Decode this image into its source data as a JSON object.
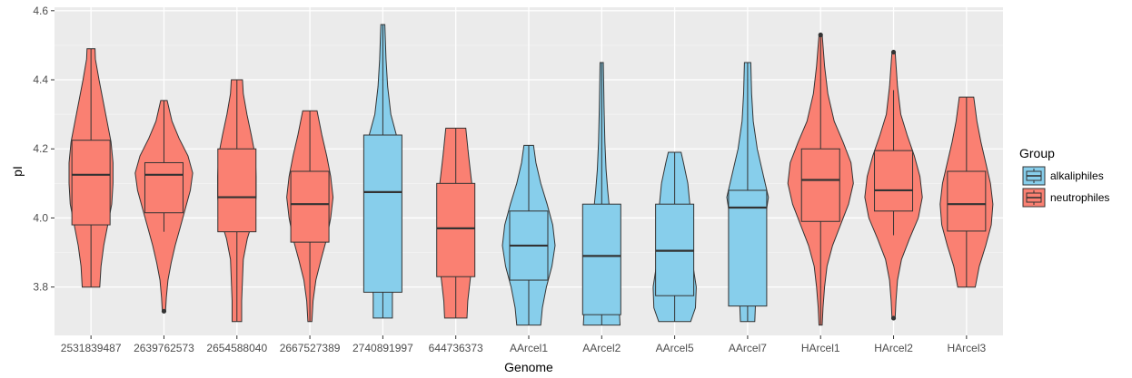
{
  "chart_data": {
    "type": "violin",
    "xlabel": "Genome",
    "ylabel": "pI",
    "ylim": [
      3.66,
      4.61
    ],
    "y_ticks": [
      3.8,
      4.0,
      4.2,
      4.4,
      4.6
    ],
    "y_tick_labels": [
      "3.8",
      "4.0",
      "4.2",
      "4.4",
      "4.6"
    ],
    "grid": true,
    "legend": {
      "title": "Group",
      "position": "right",
      "entries": [
        {
          "name": "alkaliphiles",
          "color": "#87ceeb"
        },
        {
          "name": "neutrophiles",
          "color": "#fa8072"
        }
      ]
    },
    "colors": {
      "alkaliphiles": "#87ceeb",
      "neutrophiles": "#fa8072",
      "panel": "#ebebeb",
      "outline": "#333333"
    },
    "categories": [
      "2531839487",
      "2639762573",
      "2654588040",
      "2667527389",
      "2740891997",
      "644736373",
      "AArcel1",
      "AArcel2",
      "AArcel5",
      "AArcel7",
      "HArcel1",
      "HArcel2",
      "HArcel3"
    ],
    "groups": [
      {
        "genome": "2531839487",
        "group": "neutrophiles",
        "min": 3.8,
        "max": 4.49,
        "box": {
          "q1": 3.98,
          "median": 4.125,
          "q3": 4.225,
          "whisker_low": 3.8,
          "whisker_high": 4.49
        },
        "outliers": [],
        "density": [
          [
            3.8,
            0.22
          ],
          [
            3.86,
            0.25
          ],
          [
            3.92,
            0.32
          ],
          [
            3.98,
            0.42
          ],
          [
            4.04,
            0.52
          ],
          [
            4.1,
            0.55
          ],
          [
            4.16,
            0.55
          ],
          [
            4.22,
            0.5
          ],
          [
            4.28,
            0.4
          ],
          [
            4.34,
            0.3
          ],
          [
            4.4,
            0.2
          ],
          [
            4.46,
            0.11
          ],
          [
            4.49,
            0.1
          ]
        ]
      },
      {
        "genome": "2639762573",
        "group": "neutrophiles",
        "min": 3.73,
        "max": 4.34,
        "box": {
          "q1": 4.015,
          "median": 4.125,
          "q3": 4.16,
          "whisker_low": 3.96,
          "whisker_high": 4.34
        },
        "outliers": [
          3.73
        ],
        "density": [
          [
            3.73,
            0.04
          ],
          [
            3.77,
            0.06
          ],
          [
            3.82,
            0.1
          ],
          [
            3.87,
            0.18
          ],
          [
            3.92,
            0.28
          ],
          [
            3.97,
            0.4
          ],
          [
            4.02,
            0.52
          ],
          [
            4.08,
            0.66
          ],
          [
            4.13,
            0.72
          ],
          [
            4.18,
            0.6
          ],
          [
            4.23,
            0.38
          ],
          [
            4.28,
            0.2
          ],
          [
            4.34,
            0.08
          ]
        ]
      },
      {
        "genome": "2654588040",
        "group": "neutrophiles",
        "min": 3.7,
        "max": 4.4,
        "box": {
          "q1": 3.96,
          "median": 4.06,
          "q3": 4.2,
          "whisker_low": 3.7,
          "whisker_high": 4.4
        },
        "outliers": [],
        "density": [
          [
            3.7,
            0.12
          ],
          [
            3.76,
            0.12
          ],
          [
            3.82,
            0.14
          ],
          [
            3.88,
            0.16
          ],
          [
            3.94,
            0.26
          ],
          [
            4.0,
            0.42
          ],
          [
            4.06,
            0.48
          ],
          [
            4.12,
            0.48
          ],
          [
            4.18,
            0.46
          ],
          [
            4.24,
            0.36
          ],
          [
            4.3,
            0.25
          ],
          [
            4.36,
            0.16
          ],
          [
            4.4,
            0.14
          ]
        ]
      },
      {
        "genome": "2667527389",
        "group": "neutrophiles",
        "min": 3.7,
        "max": 4.31,
        "box": {
          "q1": 3.93,
          "median": 4.04,
          "q3": 4.135,
          "whisker_low": 3.7,
          "whisker_high": 4.31
        },
        "outliers": [],
        "density": [
          [
            3.7,
            0.05
          ],
          [
            3.76,
            0.08
          ],
          [
            3.82,
            0.15
          ],
          [
            3.88,
            0.28
          ],
          [
            3.94,
            0.42
          ],
          [
            4.0,
            0.52
          ],
          [
            4.06,
            0.58
          ],
          [
            4.12,
            0.52
          ],
          [
            4.18,
            0.42
          ],
          [
            4.24,
            0.3
          ],
          [
            4.31,
            0.18
          ]
        ]
      },
      {
        "genome": "2740891997",
        "group": "alkaliphiles",
        "min": 3.71,
        "max": 4.56,
        "box": {
          "q1": 3.785,
          "median": 4.075,
          "q3": 4.24,
          "whisker_low": 3.71,
          "whisker_high": 4.56
        },
        "outliers": [],
        "density": [
          [
            3.71,
            0.24
          ],
          [
            3.78,
            0.24
          ],
          [
            3.86,
            0.33
          ],
          [
            3.94,
            0.42
          ],
          [
            4.02,
            0.42
          ],
          [
            4.1,
            0.42
          ],
          [
            4.18,
            0.42
          ],
          [
            4.24,
            0.34
          ],
          [
            4.3,
            0.2
          ],
          [
            4.38,
            0.12
          ],
          [
            4.46,
            0.08
          ],
          [
            4.56,
            0.05
          ]
        ]
      },
      {
        "genome": "644736373",
        "group": "neutrophiles",
        "min": 3.71,
        "max": 4.26,
        "box": {
          "q1": 3.83,
          "median": 3.97,
          "q3": 4.1,
          "whisker_low": 3.71,
          "whisker_high": 4.26
        },
        "outliers": [],
        "density": [
          [
            3.71,
            0.28
          ],
          [
            3.76,
            0.3
          ],
          [
            3.82,
            0.36
          ],
          [
            3.88,
            0.42
          ],
          [
            3.94,
            0.46
          ],
          [
            4.0,
            0.46
          ],
          [
            4.06,
            0.44
          ],
          [
            4.12,
            0.38
          ],
          [
            4.18,
            0.32
          ],
          [
            4.26,
            0.25
          ]
        ]
      },
      {
        "genome": "AArcel1",
        "group": "alkaliphiles",
        "min": 3.69,
        "max": 4.21,
        "box": {
          "q1": 3.82,
          "median": 3.92,
          "q3": 4.02,
          "whisker_low": 3.69,
          "whisker_high": 4.21
        },
        "outliers": [],
        "density": [
          [
            3.69,
            0.3
          ],
          [
            3.74,
            0.34
          ],
          [
            3.8,
            0.44
          ],
          [
            3.86,
            0.58
          ],
          [
            3.92,
            0.66
          ],
          [
            3.98,
            0.6
          ],
          [
            4.04,
            0.46
          ],
          [
            4.1,
            0.3
          ],
          [
            4.16,
            0.18
          ],
          [
            4.21,
            0.12
          ]
        ]
      },
      {
        "genome": "AArcel2",
        "group": "alkaliphiles",
        "min": 3.69,
        "max": 4.45,
        "box": {
          "q1": 3.72,
          "median": 3.89,
          "q3": 4.04,
          "whisker_low": 3.69,
          "whisker_high": 4.45
        },
        "outliers": [],
        "density": [
          [
            3.69,
            0.46
          ],
          [
            3.73,
            0.44
          ],
          [
            3.78,
            0.38
          ],
          [
            3.84,
            0.34
          ],
          [
            3.9,
            0.3
          ],
          [
            3.96,
            0.26
          ],
          [
            4.02,
            0.2
          ],
          [
            4.08,
            0.15
          ],
          [
            4.14,
            0.11
          ],
          [
            4.22,
            0.08
          ],
          [
            4.32,
            0.06
          ],
          [
            4.45,
            0.04
          ]
        ]
      },
      {
        "genome": "AArcel5",
        "group": "alkaliphiles",
        "min": 3.7,
        "max": 4.19,
        "box": {
          "q1": 3.775,
          "median": 3.905,
          "q3": 4.04,
          "whisker_low": 3.7,
          "whisker_high": 4.19
        },
        "outliers": [],
        "density": [
          [
            3.7,
            0.4
          ],
          [
            3.74,
            0.52
          ],
          [
            3.8,
            0.54
          ],
          [
            3.86,
            0.46
          ],
          [
            3.92,
            0.4
          ],
          [
            3.98,
            0.38
          ],
          [
            4.04,
            0.38
          ],
          [
            4.1,
            0.33
          ],
          [
            4.16,
            0.22
          ],
          [
            4.19,
            0.16
          ]
        ]
      },
      {
        "genome": "AArcel7",
        "group": "alkaliphiles",
        "min": 3.7,
        "max": 4.45,
        "box": {
          "q1": 3.745,
          "median": 4.03,
          "q3": 4.08,
          "whisker_low": 3.7,
          "whisker_high": 4.45
        },
        "outliers": [],
        "density": [
          [
            3.7,
            0.18
          ],
          [
            3.76,
            0.2
          ],
          [
            3.84,
            0.22
          ],
          [
            3.92,
            0.3
          ],
          [
            4.0,
            0.44
          ],
          [
            4.06,
            0.52
          ],
          [
            4.12,
            0.4
          ],
          [
            4.2,
            0.24
          ],
          [
            4.28,
            0.14
          ],
          [
            4.36,
            0.1
          ],
          [
            4.45,
            0.08
          ]
        ]
      },
      {
        "genome": "HArcel1",
        "group": "neutrophiles",
        "min": 3.69,
        "max": 4.53,
        "box": {
          "q1": 3.99,
          "median": 4.11,
          "q3": 4.2,
          "whisker_low": 3.69,
          "whisker_high": 4.53
        },
        "outliers": [
          4.53
        ],
        "density": [
          [
            3.69,
            0.04
          ],
          [
            3.74,
            0.06
          ],
          [
            3.8,
            0.1
          ],
          [
            3.86,
            0.16
          ],
          [
            3.92,
            0.3
          ],
          [
            3.98,
            0.5
          ],
          [
            4.04,
            0.7
          ],
          [
            4.1,
            0.82
          ],
          [
            4.16,
            0.76
          ],
          [
            4.22,
            0.56
          ],
          [
            4.28,
            0.34
          ],
          [
            4.36,
            0.18
          ],
          [
            4.44,
            0.1
          ],
          [
            4.53,
            0.04
          ]
        ]
      },
      {
        "genome": "HArcel2",
        "group": "neutrophiles",
        "min": 3.71,
        "max": 4.48,
        "box": {
          "q1": 4.02,
          "median": 4.08,
          "q3": 4.195,
          "whisker_low": 3.95,
          "whisker_high": 4.37
        },
        "outliers": [
          3.71,
          4.48
        ],
        "density": [
          [
            3.71,
            0.04
          ],
          [
            3.76,
            0.06
          ],
          [
            3.82,
            0.1
          ],
          [
            3.88,
            0.2
          ],
          [
            3.94,
            0.4
          ],
          [
            4.0,
            0.62
          ],
          [
            4.06,
            0.72
          ],
          [
            4.12,
            0.66
          ],
          [
            4.18,
            0.52
          ],
          [
            4.24,
            0.34
          ],
          [
            4.3,
            0.18
          ],
          [
            4.38,
            0.1
          ],
          [
            4.48,
            0.04
          ]
        ]
      },
      {
        "genome": "HArcel3",
        "group": "neutrophiles",
        "min": 3.8,
        "max": 4.35,
        "box": {
          "q1": 3.962,
          "median": 4.04,
          "q3": 4.135,
          "whisker_low": 3.8,
          "whisker_high": 4.35
        },
        "outliers": [],
        "density": [
          [
            3.8,
            0.22
          ],
          [
            3.86,
            0.32
          ],
          [
            3.92,
            0.48
          ],
          [
            3.98,
            0.62
          ],
          [
            4.04,
            0.66
          ],
          [
            4.1,
            0.6
          ],
          [
            4.16,
            0.48
          ],
          [
            4.22,
            0.36
          ],
          [
            4.28,
            0.26
          ],
          [
            4.35,
            0.18
          ]
        ]
      }
    ]
  }
}
